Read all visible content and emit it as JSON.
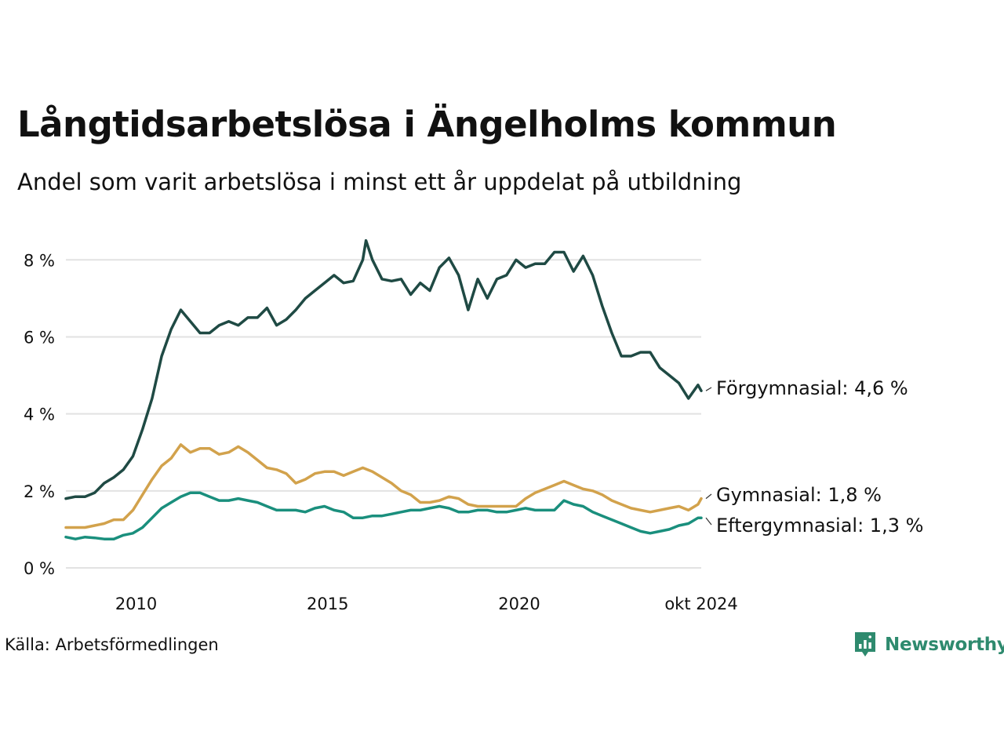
{
  "title": "Långtidsarbetslösa i Ängelholms kommun",
  "subtitle": "Andel som varit arbetslösa i minst ett år uppdelat på utbildning",
  "source": "Källa: Arbetsförmedlingen",
  "brand": {
    "name": "Newsworthy",
    "icon": "newsworthy-logo-icon",
    "color": "#2e8a6e"
  },
  "chart_data": {
    "type": "line",
    "title": "Långtidsarbetslösa i Ängelholms kommun",
    "subtitle": "Andel som varit arbetslösa i minst ett år uppdelat på utbildning",
    "xlabel": "",
    "ylabel": "",
    "x_unit": "date",
    "xlim": [
      "2008-03-01",
      "2024-10-01"
    ],
    "ylim": [
      0,
      8.8
    ],
    "grid": true,
    "legend": "direct-labels-right",
    "x_ticks": [
      {
        "date": "2010-01-01",
        "label": "2010"
      },
      {
        "date": "2015-01-01",
        "label": "2015"
      },
      {
        "date": "2020-01-01",
        "label": "2020"
      },
      {
        "date": "2024-10-01",
        "label": "okt 2024"
      }
    ],
    "y_ticks": [
      {
        "value": 0,
        "label": "0 %"
      },
      {
        "value": 2,
        "label": "2 %"
      },
      {
        "value": 4,
        "label": "4 %"
      },
      {
        "value": 6,
        "label": "6 %"
      },
      {
        "value": 8,
        "label": "8 %"
      }
    ],
    "series": [
      {
        "name": "Förgymnasial",
        "end_label": "Förgymnasial: 4,6 %",
        "color": "#1f4a44",
        "points": [
          [
            "2008-03",
            1.8
          ],
          [
            "2008-06",
            1.85
          ],
          [
            "2008-09",
            1.85
          ],
          [
            "2008-12",
            1.95
          ],
          [
            "2009-03",
            2.2
          ],
          [
            "2009-06",
            2.35
          ],
          [
            "2009-09",
            2.55
          ],
          [
            "2009-12",
            2.9
          ],
          [
            "2010-03",
            3.6
          ],
          [
            "2010-06",
            4.4
          ],
          [
            "2010-09",
            5.5
          ],
          [
            "2010-12",
            6.2
          ],
          [
            "2011-03",
            6.7
          ],
          [
            "2011-06",
            6.4
          ],
          [
            "2011-09",
            6.1
          ],
          [
            "2011-12",
            6.1
          ],
          [
            "2012-03",
            6.3
          ],
          [
            "2012-06",
            6.4
          ],
          [
            "2012-09",
            6.3
          ],
          [
            "2012-12",
            6.5
          ],
          [
            "2013-03",
            6.5
          ],
          [
            "2013-06",
            6.75
          ],
          [
            "2013-09",
            6.3
          ],
          [
            "2013-12",
            6.45
          ],
          [
            "2014-03",
            6.7
          ],
          [
            "2014-06",
            7.0
          ],
          [
            "2014-09",
            7.2
          ],
          [
            "2014-12",
            7.4
          ],
          [
            "2015-03",
            7.6
          ],
          [
            "2015-06",
            7.4
          ],
          [
            "2015-09",
            7.45
          ],
          [
            "2015-12",
            8.0
          ],
          [
            "2016-01",
            8.5
          ],
          [
            "2016-03",
            8.0
          ],
          [
            "2016-06",
            7.5
          ],
          [
            "2016-09",
            7.45
          ],
          [
            "2016-12",
            7.5
          ],
          [
            "2017-03",
            7.1
          ],
          [
            "2017-06",
            7.4
          ],
          [
            "2017-09",
            7.2
          ],
          [
            "2017-12",
            7.8
          ],
          [
            "2018-03",
            8.05
          ],
          [
            "2018-06",
            7.6
          ],
          [
            "2018-09",
            6.7
          ],
          [
            "2018-12",
            7.5
          ],
          [
            "2019-03",
            7.0
          ],
          [
            "2019-06",
            7.5
          ],
          [
            "2019-09",
            7.6
          ],
          [
            "2019-12",
            8.0
          ],
          [
            "2020-03",
            7.8
          ],
          [
            "2020-06",
            7.9
          ],
          [
            "2020-09",
            7.9
          ],
          [
            "2020-12",
            8.2
          ],
          [
            "2021-03",
            8.2
          ],
          [
            "2021-06",
            7.7
          ],
          [
            "2021-09",
            8.1
          ],
          [
            "2021-12",
            7.6
          ],
          [
            "2022-03",
            6.8
          ],
          [
            "2022-06",
            6.1
          ],
          [
            "2022-09",
            5.5
          ],
          [
            "2022-12",
            5.5
          ],
          [
            "2023-03",
            5.6
          ],
          [
            "2023-06",
            5.6
          ],
          [
            "2023-09",
            5.2
          ],
          [
            "2023-12",
            5.0
          ],
          [
            "2024-03",
            4.8
          ],
          [
            "2024-06",
            4.4
          ],
          [
            "2024-09",
            4.75
          ],
          [
            "2024-10",
            4.6
          ]
        ]
      },
      {
        "name": "Gymnasial",
        "end_label": "Gymnasial: 1,8 %",
        "color": "#d2a24c",
        "points": [
          [
            "2008-03",
            1.05
          ],
          [
            "2008-06",
            1.05
          ],
          [
            "2008-09",
            1.05
          ],
          [
            "2008-12",
            1.1
          ],
          [
            "2009-03",
            1.15
          ],
          [
            "2009-06",
            1.25
          ],
          [
            "2009-09",
            1.25
          ],
          [
            "2009-12",
            1.5
          ],
          [
            "2010-03",
            1.9
          ],
          [
            "2010-06",
            2.3
          ],
          [
            "2010-09",
            2.65
          ],
          [
            "2010-12",
            2.85
          ],
          [
            "2011-03",
            3.2
          ],
          [
            "2011-06",
            3.0
          ],
          [
            "2011-09",
            3.1
          ],
          [
            "2011-12",
            3.1
          ],
          [
            "2012-03",
            2.95
          ],
          [
            "2012-06",
            3.0
          ],
          [
            "2012-09",
            3.15
          ],
          [
            "2012-12",
            3.0
          ],
          [
            "2013-03",
            2.8
          ],
          [
            "2013-06",
            2.6
          ],
          [
            "2013-09",
            2.55
          ],
          [
            "2013-12",
            2.45
          ],
          [
            "2014-03",
            2.2
          ],
          [
            "2014-06",
            2.3
          ],
          [
            "2014-09",
            2.45
          ],
          [
            "2014-12",
            2.5
          ],
          [
            "2015-03",
            2.5
          ],
          [
            "2015-06",
            2.4
          ],
          [
            "2015-09",
            2.5
          ],
          [
            "2015-12",
            2.6
          ],
          [
            "2016-03",
            2.5
          ],
          [
            "2016-06",
            2.35
          ],
          [
            "2016-09",
            2.2
          ],
          [
            "2016-12",
            2.0
          ],
          [
            "2017-03",
            1.9
          ],
          [
            "2017-06",
            1.7
          ],
          [
            "2017-09",
            1.7
          ],
          [
            "2017-12",
            1.75
          ],
          [
            "2018-03",
            1.85
          ],
          [
            "2018-06",
            1.8
          ],
          [
            "2018-09",
            1.65
          ],
          [
            "2018-12",
            1.6
          ],
          [
            "2019-03",
            1.6
          ],
          [
            "2019-06",
            1.6
          ],
          [
            "2019-09",
            1.6
          ],
          [
            "2019-12",
            1.6
          ],
          [
            "2020-03",
            1.8
          ],
          [
            "2020-06",
            1.95
          ],
          [
            "2020-09",
            2.05
          ],
          [
            "2020-12",
            2.15
          ],
          [
            "2021-03",
            2.25
          ],
          [
            "2021-06",
            2.15
          ],
          [
            "2021-09",
            2.05
          ],
          [
            "2021-12",
            2.0
          ],
          [
            "2022-03",
            1.9
          ],
          [
            "2022-06",
            1.75
          ],
          [
            "2022-09",
            1.65
          ],
          [
            "2022-12",
            1.55
          ],
          [
            "2023-03",
            1.5
          ],
          [
            "2023-06",
            1.45
          ],
          [
            "2023-09",
            1.5
          ],
          [
            "2023-12",
            1.55
          ],
          [
            "2024-03",
            1.6
          ],
          [
            "2024-06",
            1.5
          ],
          [
            "2024-09",
            1.65
          ],
          [
            "2024-10",
            1.8
          ]
        ]
      },
      {
        "name": "Eftergymnasial",
        "end_label": "Eftergymnasial: 1,3 %",
        "color": "#1a8f7d",
        "points": [
          [
            "2008-03",
            0.8
          ],
          [
            "2008-06",
            0.75
          ],
          [
            "2008-09",
            0.8
          ],
          [
            "2008-12",
            0.78
          ],
          [
            "2009-03",
            0.75
          ],
          [
            "2009-06",
            0.75
          ],
          [
            "2009-09",
            0.85
          ],
          [
            "2009-12",
            0.9
          ],
          [
            "2010-03",
            1.05
          ],
          [
            "2010-06",
            1.3
          ],
          [
            "2010-09",
            1.55
          ],
          [
            "2010-12",
            1.7
          ],
          [
            "2011-03",
            1.85
          ],
          [
            "2011-06",
            1.95
          ],
          [
            "2011-09",
            1.95
          ],
          [
            "2011-12",
            1.85
          ],
          [
            "2012-03",
            1.75
          ],
          [
            "2012-06",
            1.75
          ],
          [
            "2012-09",
            1.8
          ],
          [
            "2012-12",
            1.75
          ],
          [
            "2013-03",
            1.7
          ],
          [
            "2013-06",
            1.6
          ],
          [
            "2013-09",
            1.5
          ],
          [
            "2013-12",
            1.5
          ],
          [
            "2014-03",
            1.5
          ],
          [
            "2014-06",
            1.45
          ],
          [
            "2014-09",
            1.55
          ],
          [
            "2014-12",
            1.6
          ],
          [
            "2015-03",
            1.5
          ],
          [
            "2015-06",
            1.45
          ],
          [
            "2015-09",
            1.3
          ],
          [
            "2015-12",
            1.3
          ],
          [
            "2016-03",
            1.35
          ],
          [
            "2016-06",
            1.35
          ],
          [
            "2016-09",
            1.4
          ],
          [
            "2016-12",
            1.45
          ],
          [
            "2017-03",
            1.5
          ],
          [
            "2017-06",
            1.5
          ],
          [
            "2017-09",
            1.55
          ],
          [
            "2017-12",
            1.6
          ],
          [
            "2018-03",
            1.55
          ],
          [
            "2018-06",
            1.45
          ],
          [
            "2018-09",
            1.45
          ],
          [
            "2018-12",
            1.5
          ],
          [
            "2019-03",
            1.5
          ],
          [
            "2019-06",
            1.45
          ],
          [
            "2019-09",
            1.45
          ],
          [
            "2019-12",
            1.5
          ],
          [
            "2020-03",
            1.55
          ],
          [
            "2020-06",
            1.5
          ],
          [
            "2020-09",
            1.5
          ],
          [
            "2020-12",
            1.5
          ],
          [
            "2021-03",
            1.75
          ],
          [
            "2021-06",
            1.65
          ],
          [
            "2021-09",
            1.6
          ],
          [
            "2021-12",
            1.45
          ],
          [
            "2022-03",
            1.35
          ],
          [
            "2022-06",
            1.25
          ],
          [
            "2022-09",
            1.15
          ],
          [
            "2022-12",
            1.05
          ],
          [
            "2023-03",
            0.95
          ],
          [
            "2023-06",
            0.9
          ],
          [
            "2023-09",
            0.95
          ],
          [
            "2023-12",
            1.0
          ],
          [
            "2024-03",
            1.1
          ],
          [
            "2024-06",
            1.15
          ],
          [
            "2024-09",
            1.3
          ],
          [
            "2024-10",
            1.3
          ]
        ]
      }
    ]
  }
}
